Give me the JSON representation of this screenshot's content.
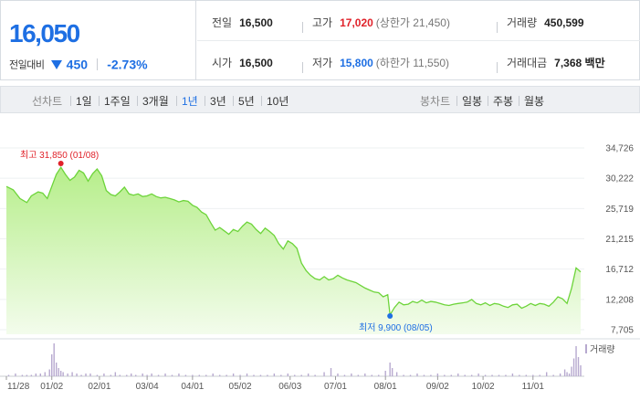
{
  "quote": {
    "price": "16,050",
    "change_label": "전일대비",
    "change_abs": "450",
    "change_pct": "-2.73%",
    "prev_close": {
      "label": "전일",
      "value": "16,500"
    },
    "high": {
      "label": "고가",
      "value": "17,020",
      "limit_label": "(상한가 21,450)"
    },
    "volume": {
      "label": "거래량",
      "value": "450,599"
    },
    "open": {
      "label": "시가",
      "value": "16,500"
    },
    "low": {
      "label": "저가",
      "value": "15,800",
      "limit_label": "(하한가 11,550)"
    },
    "trade_value": {
      "label": "거래대금",
      "value": "7,368 백만"
    }
  },
  "tabs": {
    "line_chart_label": "선차트",
    "periods": [
      "1일",
      "1주일",
      "3개월",
      "1년",
      "3년",
      "5년",
      "10년"
    ],
    "selected_period": "1년",
    "candle_chart_label": "봉차트",
    "candles": [
      "일봉",
      "주봉",
      "월봉"
    ]
  },
  "colors": {
    "price_blue": "#1e6fe3",
    "up_red": "#e0222a",
    "line_green": "#6dd43a",
    "area_fill_top": "#b9ef8f",
    "volume_bar": "#b7a9cf",
    "max_marker": "#e0222a",
    "min_marker": "#1e6fe3"
  },
  "chart_data": {
    "type": "area",
    "y_ticks": [
      "34,726",
      "30,222",
      "25,719",
      "21,215",
      "16,712",
      "12,208",
      "7,705"
    ],
    "y_range": [
      7705,
      34726
    ],
    "x_ticks": [
      "11/28",
      "01/02",
      "02/01",
      "03/04",
      "04/01",
      "05/02",
      "06/03",
      "07/01",
      "08/01",
      "09/02",
      "10/02",
      "11/01"
    ],
    "x_tick_positions": [
      0,
      20,
      41,
      62,
      82,
      103,
      125,
      145,
      167,
      190,
      210,
      232
    ],
    "x_domain_days": [
      0,
      253
    ],
    "max_annotation": "최고 31,850 (01/08)",
    "max_point": {
      "day": 24,
      "value": 31850
    },
    "min_annotation": "최저 9,900 (08/05)",
    "min_point": {
      "day": 169,
      "value": 9900
    },
    "volume_label": "거래량",
    "series": [
      {
        "values": [
          [
            0,
            29000
          ],
          [
            3,
            28500
          ],
          [
            6,
            27200
          ],
          [
            9,
            26600
          ],
          [
            11,
            27600
          ],
          [
            14,
            28200
          ],
          [
            16,
            28000
          ],
          [
            18,
            27200
          ],
          [
            20,
            29000
          ],
          [
            22,
            30800
          ],
          [
            24,
            31850
          ],
          [
            26,
            30800
          ],
          [
            28,
            29900
          ],
          [
            30,
            30400
          ],
          [
            32,
            31400
          ],
          [
            34,
            31000
          ],
          [
            36,
            29800
          ],
          [
            38,
            30900
          ],
          [
            40,
            31600
          ],
          [
            42,
            30600
          ],
          [
            44,
            28400
          ],
          [
            46,
            27800
          ],
          [
            48,
            27600
          ],
          [
            50,
            28200
          ],
          [
            52,
            28900
          ],
          [
            54,
            27900
          ],
          [
            56,
            27700
          ],
          [
            58,
            27900
          ],
          [
            60,
            27500
          ],
          [
            62,
            27600
          ],
          [
            64,
            27900
          ],
          [
            66,
            27500
          ],
          [
            68,
            27300
          ],
          [
            70,
            27400
          ],
          [
            72,
            27200
          ],
          [
            74,
            27000
          ],
          [
            76,
            26700
          ],
          [
            78,
            26900
          ],
          [
            80,
            26800
          ],
          [
            82,
            26200
          ],
          [
            84,
            25900
          ],
          [
            86,
            25200
          ],
          [
            88,
            24800
          ],
          [
            90,
            23600
          ],
          [
            92,
            22500
          ],
          [
            94,
            22900
          ],
          [
            96,
            22400
          ],
          [
            98,
            21900
          ],
          [
            100,
            22600
          ],
          [
            102,
            22300
          ],
          [
            104,
            23100
          ],
          [
            106,
            23700
          ],
          [
            108,
            23400
          ],
          [
            110,
            22600
          ],
          [
            112,
            22000
          ],
          [
            114,
            22800
          ],
          [
            116,
            22300
          ],
          [
            118,
            21700
          ],
          [
            120,
            20500
          ],
          [
            122,
            19700
          ],
          [
            124,
            20900
          ],
          [
            126,
            20500
          ],
          [
            128,
            19800
          ],
          [
            130,
            17600
          ],
          [
            132,
            16500
          ],
          [
            134,
            15800
          ],
          [
            136,
            15300
          ],
          [
            138,
            15100
          ],
          [
            140,
            15600
          ],
          [
            142,
            15100
          ],
          [
            144,
            15300
          ],
          [
            146,
            15800
          ],
          [
            148,
            15400
          ],
          [
            150,
            15100
          ],
          [
            152,
            14900
          ],
          [
            154,
            14700
          ],
          [
            156,
            14300
          ],
          [
            158,
            13900
          ],
          [
            160,
            13600
          ],
          [
            162,
            13300
          ],
          [
            164,
            13200
          ],
          [
            166,
            12600
          ],
          [
            168,
            12900
          ],
          [
            169,
            9900
          ],
          [
            171,
            11000
          ],
          [
            173,
            11800
          ],
          [
            175,
            11400
          ],
          [
            177,
            11500
          ],
          [
            179,
            11900
          ],
          [
            181,
            11700
          ],
          [
            183,
            12100
          ],
          [
            185,
            11700
          ],
          [
            187,
            11900
          ],
          [
            189,
            11800
          ],
          [
            191,
            11600
          ],
          [
            193,
            11400
          ],
          [
            195,
            11300
          ],
          [
            197,
            11500
          ],
          [
            199,
            11600
          ],
          [
            201,
            11700
          ],
          [
            203,
            11800
          ],
          [
            205,
            12200
          ],
          [
            207,
            11600
          ],
          [
            209,
            11400
          ],
          [
            211,
            11700
          ],
          [
            213,
            11300
          ],
          [
            215,
            11600
          ],
          [
            217,
            11500
          ],
          [
            219,
            11200
          ],
          [
            221,
            11000
          ],
          [
            223,
            11400
          ],
          [
            225,
            11500
          ],
          [
            227,
            10900
          ],
          [
            229,
            11200
          ],
          [
            231,
            11600
          ],
          [
            233,
            11300
          ],
          [
            235,
            11600
          ],
          [
            237,
            11500
          ],
          [
            239,
            11200
          ],
          [
            241,
            11800
          ],
          [
            243,
            12600
          ],
          [
            245,
            12300
          ],
          [
            247,
            11600
          ],
          [
            249,
            13900
          ],
          [
            251,
            16900
          ],
          [
            253,
            16300
          ]
        ]
      }
    ],
    "volume": [
      [
        1,
        1
      ],
      [
        4,
        2
      ],
      [
        7,
        1
      ],
      [
        9,
        1
      ],
      [
        11,
        1
      ],
      [
        13,
        2
      ],
      [
        15,
        2
      ],
      [
        17,
        3
      ],
      [
        19,
        5
      ],
      [
        20,
        16
      ],
      [
        21,
        24
      ],
      [
        22,
        10
      ],
      [
        23,
        6
      ],
      [
        24,
        4
      ],
      [
        25,
        3
      ],
      [
        27,
        2
      ],
      [
        29,
        3
      ],
      [
        31,
        2
      ],
      [
        33,
        1
      ],
      [
        35,
        2
      ],
      [
        37,
        2
      ],
      [
        40,
        1
      ],
      [
        43,
        2
      ],
      [
        46,
        1
      ],
      [
        48,
        3
      ],
      [
        50,
        1
      ],
      [
        53,
        1
      ],
      [
        55,
        2
      ],
      [
        57,
        1
      ],
      [
        60,
        2
      ],
      [
        62,
        1
      ],
      [
        64,
        2
      ],
      [
        67,
        1
      ],
      [
        70,
        2
      ],
      [
        73,
        1
      ],
      [
        76,
        2
      ],
      [
        79,
        1
      ],
      [
        82,
        1
      ],
      [
        85,
        1
      ],
      [
        88,
        1
      ],
      [
        91,
        2
      ],
      [
        94,
        1
      ],
      [
        97,
        1
      ],
      [
        100,
        2
      ],
      [
        103,
        1
      ],
      [
        106,
        2
      ],
      [
        109,
        1
      ],
      [
        112,
        1
      ],
      [
        115,
        1
      ],
      [
        118,
        2
      ],
      [
        121,
        1
      ],
      [
        124,
        2
      ],
      [
        127,
        1
      ],
      [
        130,
        1
      ],
      [
        133,
        2
      ],
      [
        136,
        1
      ],
      [
        140,
        3
      ],
      [
        143,
        6
      ],
      [
        146,
        2
      ],
      [
        149,
        1
      ],
      [
        152,
        2
      ],
      [
        155,
        1
      ],
      [
        158,
        2
      ],
      [
        161,
        1
      ],
      [
        164,
        1
      ],
      [
        167,
        4
      ],
      [
        169,
        10
      ],
      [
        170,
        6
      ],
      [
        172,
        3
      ],
      [
        175,
        1
      ],
      [
        178,
        1
      ],
      [
        181,
        2
      ],
      [
        184,
        1
      ],
      [
        187,
        1
      ],
      [
        190,
        2
      ],
      [
        193,
        1
      ],
      [
        196,
        1
      ],
      [
        199,
        2
      ],
      [
        202,
        1
      ],
      [
        205,
        1
      ],
      [
        208,
        2
      ],
      [
        211,
        1
      ],
      [
        214,
        1
      ],
      [
        217,
        1
      ],
      [
        220,
        1
      ],
      [
        223,
        2
      ],
      [
        226,
        1
      ],
      [
        229,
        1
      ],
      [
        232,
        1
      ],
      [
        235,
        1
      ],
      [
        238,
        3
      ],
      [
        241,
        1
      ],
      [
        244,
        2
      ],
      [
        246,
        5
      ],
      [
        247,
        3
      ],
      [
        248,
        2
      ],
      [
        249,
        7
      ],
      [
        250,
        13
      ],
      [
        251,
        22
      ],
      [
        252,
        14
      ],
      [
        253,
        8
      ]
    ]
  }
}
